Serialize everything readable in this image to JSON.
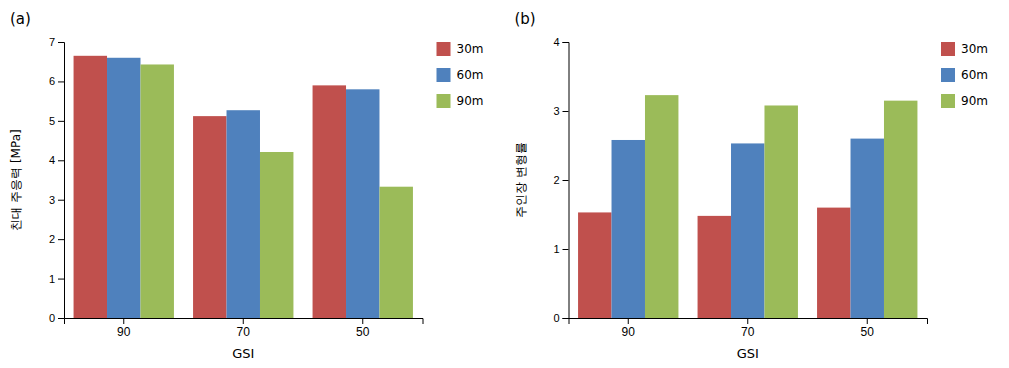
{
  "chart_data": [
    {
      "type": "bar",
      "title": "(a)",
      "categories": [
        "90",
        "70",
        "50"
      ],
      "series": [
        {
          "name": "30m",
          "color": "#c0504d",
          "values": [
            6.65,
            5.12,
            5.9
          ]
        },
        {
          "name": "60m",
          "color": "#4f81bd",
          "values": [
            6.6,
            5.27,
            5.8
          ]
        },
        {
          "name": "90m",
          "color": "#9bbb59",
          "values": [
            6.43,
            4.21,
            3.33
          ]
        }
      ],
      "xlabel": "GSI",
      "ylabel": "친대 주응력 [MPa]",
      "ylim": [
        0,
        7
      ],
      "yticks": [
        0,
        1,
        2,
        3,
        4,
        5,
        6,
        7
      ],
      "grid": false,
      "legend": "right"
    },
    {
      "type": "bar",
      "title": "(b)",
      "categories": [
        "90",
        "70",
        "50"
      ],
      "series": [
        {
          "name": "30m",
          "color": "#c0504d",
          "values": [
            1.53,
            1.48,
            1.6
          ]
        },
        {
          "name": "60m",
          "color": "#4f81bd",
          "values": [
            2.58,
            2.53,
            2.6
          ]
        },
        {
          "name": "90m",
          "color": "#9bbb59",
          "values": [
            3.23,
            3.08,
            3.15
          ]
        }
      ],
      "xlabel": "GSI",
      "ylabel": "주인장 변형률",
      "ylim": [
        0,
        4
      ],
      "yticks": [
        0,
        1,
        2,
        3,
        4
      ],
      "grid": false,
      "legend": "right"
    }
  ]
}
